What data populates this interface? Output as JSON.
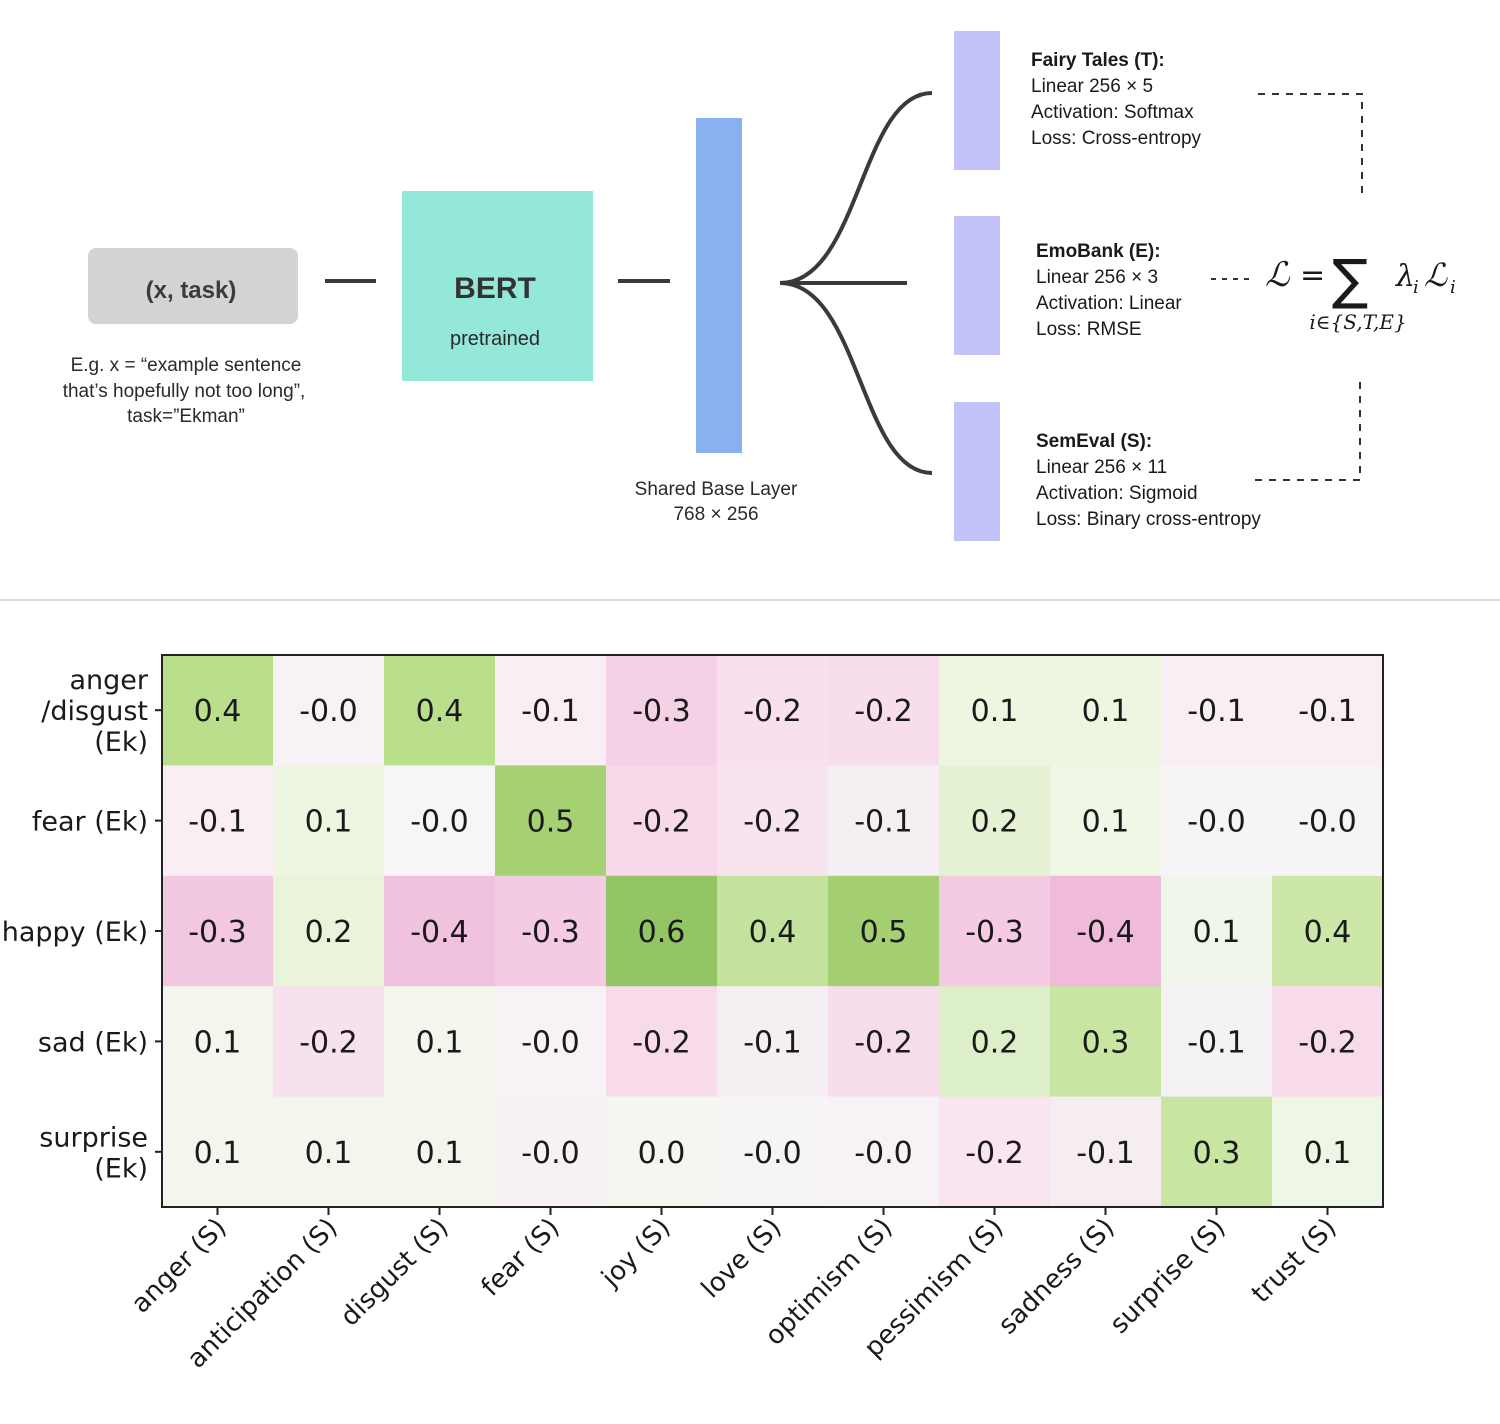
{
  "diagram": {
    "input_box": {
      "label": "(x, task)"
    },
    "input_caption": [
      "E.g. x = “example sentence",
      "that’s hopefully not too long”,",
      "task=”Ekman”"
    ],
    "bert": {
      "title": "BERT",
      "subtitle": "pretrained"
    },
    "shared_layer": {
      "caption_1": "Shared Base Layer",
      "caption_2": "768 × 256"
    },
    "heads": [
      {
        "title": "Fairy Tales (T):",
        "lines": [
          "Linear 256 × 5",
          "Activation: Softmax",
          "Loss: Cross-entropy"
        ]
      },
      {
        "title": "EmoBank (E):",
        "lines": [
          "Linear 256 × 3",
          "Activation: Linear",
          "Loss: RMSE"
        ]
      },
      {
        "title": "SemEval (S):",
        "lines": [
          "Linear 256 × 11",
          "Activation: Sigmoid",
          "Loss: Binary cross-entropy"
        ]
      }
    ],
    "loss_formula": {
      "lhs": "ℒ",
      "eq": "=",
      "sum": "∑",
      "term_lambda": "λ",
      "term_sub": "i",
      "term_L": "ℒ",
      "term_L_sub": "i",
      "under": "i∈{S,T,E}"
    },
    "colors": {
      "input": "#d3d3d3",
      "bert": "#93e8d9",
      "shared": "#8ab1ef",
      "head": "#c4c2fb",
      "line": "#3a3a3a"
    }
  },
  "chart_data": {
    "type": "heatmap",
    "rows": [
      [
        "anger",
        "/disgust",
        "(Ek)"
      ],
      [
        "fear (Ek)"
      ],
      [
        "happy (Ek)"
      ],
      [
        "sad (Ek)"
      ],
      [
        "surprise",
        "(Ek)"
      ]
    ],
    "columns": [
      "anger (S)",
      "anticipation (S)",
      "disgust (S)",
      "fear (S)",
      "joy (S)",
      "love (S)",
      "optimism (S)",
      "pessimism (S)",
      "sadness (S)",
      "surprise (S)",
      "trust (S)"
    ],
    "values": [
      [
        0.4,
        -0.0,
        0.4,
        -0.1,
        -0.3,
        -0.2,
        -0.2,
        0.1,
        0.1,
        -0.1,
        -0.1
      ],
      [
        -0.1,
        0.1,
        -0.0,
        0.5,
        -0.2,
        -0.2,
        -0.1,
        0.2,
        0.1,
        -0.0,
        -0.0
      ],
      [
        -0.3,
        0.2,
        -0.4,
        -0.3,
        0.6,
        0.4,
        0.5,
        -0.3,
        -0.4,
        0.1,
        0.4
      ],
      [
        0.1,
        -0.2,
        0.1,
        -0.0,
        -0.2,
        -0.1,
        -0.2,
        0.2,
        0.3,
        -0.1,
        -0.2
      ],
      [
        0.1,
        0.1,
        0.1,
        -0.0,
        0.0,
        -0.0,
        -0.0,
        -0.2,
        -0.1,
        0.3,
        0.1
      ]
    ],
    "labels": [
      [
        "0.4",
        "-0.0",
        "0.4",
        "-0.1",
        "-0.3",
        "-0.2",
        "-0.2",
        "0.1",
        "0.1",
        "-0.1",
        "-0.1"
      ],
      [
        "-0.1",
        "0.1",
        "-0.0",
        "0.5",
        "-0.2",
        "-0.2",
        "-0.1",
        "0.2",
        "0.1",
        "-0.0",
        "-0.0"
      ],
      [
        "-0.3",
        "0.2",
        "-0.4",
        "-0.3",
        "0.6",
        "0.4",
        "0.5",
        "-0.3",
        "-0.4",
        "0.1",
        "0.4"
      ],
      [
        "0.1",
        "-0.2",
        "0.1",
        "-0.0",
        "-0.2",
        "-0.1",
        "-0.2",
        "0.2",
        "0.3",
        "-0.1",
        "-0.2"
      ],
      [
        "0.1",
        "0.1",
        "0.1",
        "-0.0",
        "0.0",
        "-0.0",
        "-0.0",
        "-0.2",
        "-0.1",
        "0.3",
        "0.1"
      ]
    ],
    "color_scale": {
      "negative": "#f2c2dd",
      "neutral": "#f7f7f7",
      "positive": "#93c565"
    },
    "cell_shades": [
      [
        "#b9de8c",
        "#f7f2f5",
        "#b9de8c",
        "#f8eef3",
        "#f5d1e5",
        "#f8e0ed",
        "#f8dded",
        "#eef6e1",
        "#eef6e1",
        "#f8eef3",
        "#f8eef3"
      ],
      [
        "#f8eef3",
        "#eef6e1",
        "#f7f5f7",
        "#a5d173",
        "#f7d9ea",
        "#f8e4ef",
        "#f5eff4",
        "#e6f2d4",
        "#f0f7e6",
        "#f6f4f6",
        "#f6f4f6"
      ],
      [
        "#f2c7e0",
        "#e9f4db",
        "#f1c2dd",
        "#f4cbe2",
        "#93c565",
        "#c3e29b",
        "#a4d072",
        "#f5cbe3",
        "#f0bbdb",
        "#f1f6eb",
        "#cde7a8"
      ],
      [
        "#f2f6ec",
        "#f8e1ee",
        "#f2f6ec",
        "#f6f2f5",
        "#f8dbeb",
        "#f5eff4",
        "#f7ddec",
        "#ddefc8",
        "#c8e5a2",
        "#f5f2f5",
        "#f8dbeb"
      ],
      [
        "#f2f6ec",
        "#f2f6ec",
        "#f2f6ec",
        "#f7f1f5",
        "#f4f6f0",
        "#f6f4f6",
        "#f6f2f5",
        "#f9e4ef",
        "#f5edf2",
        "#c8e5a2",
        "#eef6e6"
      ]
    ]
  }
}
